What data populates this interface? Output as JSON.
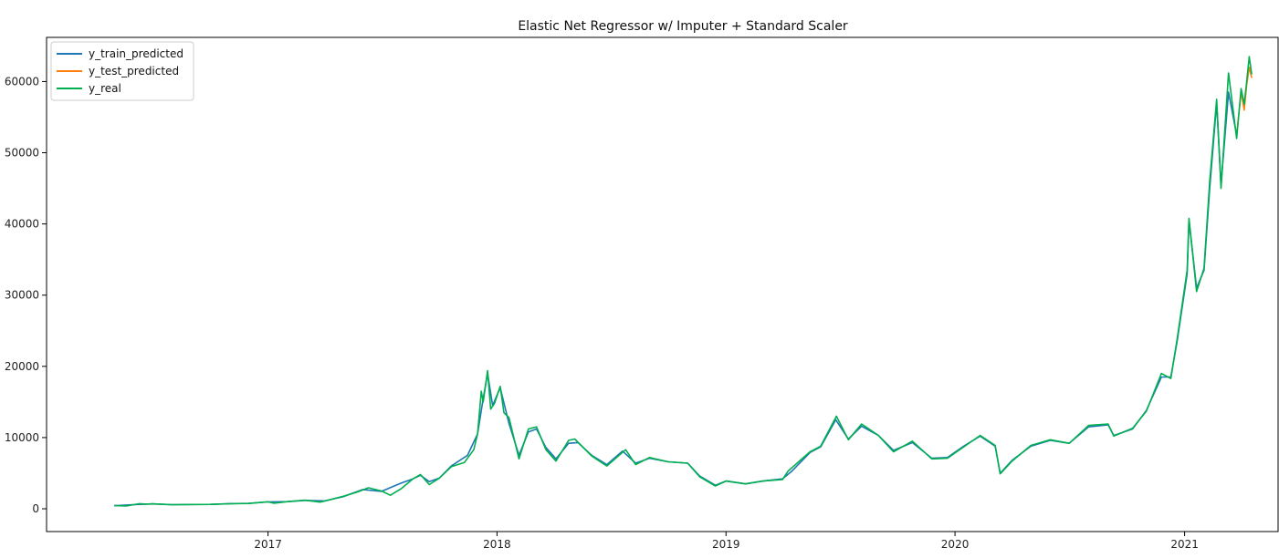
{
  "chart_data": {
    "type": "line",
    "title": "Elastic Net Regressor w/ Imputer + Standard Scaler",
    "xlabel": "",
    "ylabel": "",
    "x_axis": "date",
    "xlim": [
      "2016-01-14",
      "2021-05-30"
    ],
    "ylim": [
      -3200,
      66200
    ],
    "xticks": [
      "2017",
      "2018",
      "2019",
      "2020",
      "2021"
    ],
    "yticks": [
      "0",
      "10000",
      "20000",
      "30000",
      "40000",
      "50000",
      "60000"
    ],
    "grid": false,
    "legend_position": "top-left",
    "series": [
      {
        "name": "y_train_predicted",
        "color": "#1f77b4",
        "points": [
          [
            "2016-05-01",
            440
          ],
          [
            "2016-06-10",
            620
          ],
          [
            "2016-07-01",
            680
          ],
          [
            "2016-08-01",
            580
          ],
          [
            "2016-09-01",
            600
          ],
          [
            "2016-10-01",
            620
          ],
          [
            "2016-11-01",
            720
          ],
          [
            "2016-12-01",
            760
          ],
          [
            "2017-01-01",
            960
          ],
          [
            "2017-02-01",
            1000
          ],
          [
            "2017-03-01",
            1180
          ],
          [
            "2017-04-01",
            1100
          ],
          [
            "2017-05-01",
            1700
          ],
          [
            "2017-06-01",
            2700
          ],
          [
            "2017-07-01",
            2450
          ],
          [
            "2017-08-01",
            3600
          ],
          [
            "2017-08-20",
            4200
          ],
          [
            "2017-09-01",
            4700
          ],
          [
            "2017-09-15",
            3800
          ],
          [
            "2017-10-01",
            4300
          ],
          [
            "2017-10-20",
            6000
          ],
          [
            "2017-11-15",
            7500
          ],
          [
            "2017-12-01",
            10500
          ],
          [
            "2017-12-10",
            15500
          ],
          [
            "2017-12-17",
            19000
          ],
          [
            "2017-12-25",
            14500
          ],
          [
            "2018-01-06",
            17000
          ],
          [
            "2018-01-20",
            12000
          ],
          [
            "2018-02-05",
            7500
          ],
          [
            "2018-02-20",
            10800
          ],
          [
            "2018-03-05",
            11200
          ],
          [
            "2018-03-20",
            8600
          ],
          [
            "2018-04-05",
            7000
          ],
          [
            "2018-04-25",
            9200
          ],
          [
            "2018-05-10",
            9300
          ],
          [
            "2018-06-01",
            7500
          ],
          [
            "2018-06-25",
            6200
          ],
          [
            "2018-07-20",
            8100
          ],
          [
            "2018-08-10",
            6400
          ],
          [
            "2018-09-01",
            7100
          ],
          [
            "2018-10-01",
            6600
          ],
          [
            "2018-11-01",
            6400
          ],
          [
            "2018-11-20",
            4600
          ],
          [
            "2018-12-15",
            3300
          ],
          [
            "2019-01-01",
            3900
          ],
          [
            "2019-02-01",
            3500
          ],
          [
            "2019-03-01",
            3900
          ],
          [
            "2019-04-01",
            4200
          ],
          [
            "2019-04-15",
            5200
          ],
          [
            "2019-05-15",
            7900
          ],
          [
            "2019-06-01",
            8700
          ],
          [
            "2019-06-25",
            12500
          ],
          [
            "2019-07-15",
            9800
          ],
          [
            "2019-08-05",
            11600
          ],
          [
            "2019-09-01",
            10300
          ],
          [
            "2019-09-25",
            8200
          ],
          [
            "2019-10-25",
            9300
          ],
          [
            "2019-11-25",
            7100
          ],
          [
            "2019-12-20",
            7200
          ],
          [
            "2020-01-15",
            8800
          ],
          [
            "2020-02-10",
            10200
          ],
          [
            "2020-03-05",
            8800
          ],
          [
            "2020-03-13",
            5000
          ],
          [
            "2020-04-01",
            6800
          ],
          [
            "2020-05-01",
            8800
          ],
          [
            "2020-06-01",
            9600
          ],
          [
            "2020-07-01",
            9200
          ],
          [
            "2020-08-01",
            11500
          ],
          [
            "2020-09-01",
            11800
          ],
          [
            "2020-09-10",
            10300
          ],
          [
            "2020-10-10",
            11200
          ],
          [
            "2020-11-01",
            13800
          ],
          [
            "2020-11-25",
            18500
          ],
          [
            "2020-12-10",
            18500
          ],
          [
            "2020-12-20",
            23500
          ],
          [
            "2021-01-05",
            33000
          ],
          [
            "2021-01-08",
            40500
          ],
          [
            "2021-01-20",
            31000
          ],
          [
            "2021-02-01",
            33500
          ],
          [
            "2021-02-10",
            45000
          ],
          [
            "2021-02-21",
            57000
          ],
          [
            "2021-02-28",
            45500
          ],
          [
            "2021-03-12",
            58500
          ],
          [
            "2021-03-25",
            52500
          ]
        ]
      },
      {
        "name": "y_test_predicted",
        "color": "#ff7f0e",
        "points": [
          [
            "2021-03-25",
            52500
          ],
          [
            "2021-04-01",
            58500
          ],
          [
            "2021-04-06",
            56000
          ],
          [
            "2021-04-10",
            59500
          ],
          [
            "2021-04-14",
            62000
          ],
          [
            "2021-04-18",
            60500
          ]
        ]
      },
      {
        "name": "y_real",
        "color": "#00b050",
        "points": [
          [
            "2016-05-01",
            450
          ],
          [
            "2016-05-20",
            380
          ],
          [
            "2016-06-10",
            720
          ],
          [
            "2016-06-20",
            660
          ],
          [
            "2016-07-01",
            690
          ],
          [
            "2016-08-01",
            570
          ],
          [
            "2016-09-01",
            605
          ],
          [
            "2016-10-01",
            615
          ],
          [
            "2016-11-01",
            710
          ],
          [
            "2016-12-01",
            750
          ],
          [
            "2017-01-01",
            990
          ],
          [
            "2017-01-10",
            780
          ],
          [
            "2017-02-01",
            1000
          ],
          [
            "2017-03-01",
            1200
          ],
          [
            "2017-03-25",
            940
          ],
          [
            "2017-04-01",
            1080
          ],
          [
            "2017-05-01",
            1750
          ],
          [
            "2017-05-25",
            2400
          ],
          [
            "2017-06-10",
            2950
          ],
          [
            "2017-07-01",
            2500
          ],
          [
            "2017-07-15",
            1900
          ],
          [
            "2017-08-01",
            2800
          ],
          [
            "2017-08-20",
            4200
          ],
          [
            "2017-09-01",
            4800
          ],
          [
            "2017-09-15",
            3400
          ],
          [
            "2017-10-01",
            4300
          ],
          [
            "2017-10-20",
            5900
          ],
          [
            "2017-11-10",
            6500
          ],
          [
            "2017-11-25",
            8300
          ],
          [
            "2017-12-01",
            10500
          ],
          [
            "2017-12-07",
            16500
          ],
          [
            "2017-12-10",
            15000
          ],
          [
            "2017-12-17",
            19400
          ],
          [
            "2017-12-22",
            14000
          ],
          [
            "2017-12-28",
            14800
          ],
          [
            "2018-01-06",
            17200
          ],
          [
            "2018-01-12",
            13500
          ],
          [
            "2018-01-20",
            12800
          ],
          [
            "2018-02-05",
            7000
          ],
          [
            "2018-02-20",
            11200
          ],
          [
            "2018-03-05",
            11500
          ],
          [
            "2018-03-20",
            8300
          ],
          [
            "2018-04-05",
            6700
          ],
          [
            "2018-04-25",
            9600
          ],
          [
            "2018-05-05",
            9800
          ],
          [
            "2018-06-01",
            7400
          ],
          [
            "2018-06-25",
            6000
          ],
          [
            "2018-07-25",
            8300
          ],
          [
            "2018-08-10",
            6200
          ],
          [
            "2018-09-01",
            7200
          ],
          [
            "2018-10-01",
            6600
          ],
          [
            "2018-11-01",
            6400
          ],
          [
            "2018-11-20",
            4500
          ],
          [
            "2018-12-15",
            3200
          ],
          [
            "2019-01-01",
            3900
          ],
          [
            "2019-02-01",
            3500
          ],
          [
            "2019-03-01",
            3900
          ],
          [
            "2019-04-01",
            4100
          ],
          [
            "2019-04-10",
            5300
          ],
          [
            "2019-05-15",
            8000
          ],
          [
            "2019-06-01",
            8800
          ],
          [
            "2019-06-26",
            13000
          ],
          [
            "2019-07-15",
            9700
          ],
          [
            "2019-08-05",
            11900
          ],
          [
            "2019-09-01",
            10300
          ],
          [
            "2019-09-25",
            8000
          ],
          [
            "2019-10-25",
            9500
          ],
          [
            "2019-11-25",
            7000
          ],
          [
            "2019-12-20",
            7100
          ],
          [
            "2020-01-15",
            8700
          ],
          [
            "2020-02-10",
            10300
          ],
          [
            "2020-03-05",
            8900
          ],
          [
            "2020-03-13",
            4900
          ],
          [
            "2020-04-01",
            6700
          ],
          [
            "2020-05-01",
            8900
          ],
          [
            "2020-06-01",
            9700
          ],
          [
            "2020-07-01",
            9200
          ],
          [
            "2020-08-01",
            11700
          ],
          [
            "2020-09-01",
            11900
          ],
          [
            "2020-09-10",
            10200
          ],
          [
            "2020-10-10",
            11300
          ],
          [
            "2020-11-01",
            13700
          ],
          [
            "2020-11-25",
            19000
          ],
          [
            "2020-12-10",
            18300
          ],
          [
            "2020-12-20",
            23800
          ],
          [
            "2021-01-05",
            33500
          ],
          [
            "2021-01-08",
            40800
          ],
          [
            "2021-01-20",
            30500
          ],
          [
            "2021-02-01",
            33800
          ],
          [
            "2021-02-10",
            46000
          ],
          [
            "2021-02-21",
            57500
          ],
          [
            "2021-02-28",
            45000
          ],
          [
            "2021-03-12",
            61200
          ],
          [
            "2021-03-25",
            52000
          ],
          [
            "2021-04-01",
            59000
          ],
          [
            "2021-04-06",
            56800
          ],
          [
            "2021-04-10",
            60000
          ],
          [
            "2021-04-14",
            63500
          ],
          [
            "2021-04-18",
            61000
          ]
        ]
      }
    ]
  }
}
